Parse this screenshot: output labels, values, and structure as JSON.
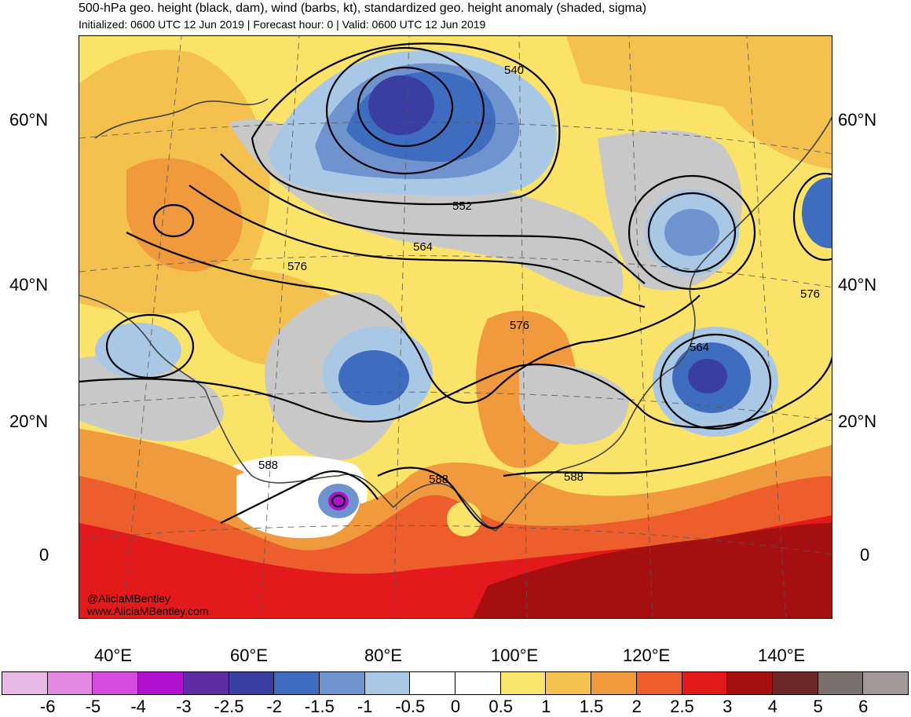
{
  "header": {
    "title": "500-hPa geo. height (black, dam), wind (barbs, kt), standardized geo. height anomaly (shaded, sigma)",
    "subtitle": "Initialized: 0600 UTC 12 Jun 2019 | Forecast hour: 0 | Valid: 0600 UTC 12 Jun 2019"
  },
  "map": {
    "lat_labels": [
      "60°N",
      "40°N",
      "20°N",
      "0"
    ],
    "lon_labels": [
      "40°E",
      "60°E",
      "80°E",
      "100°E",
      "120°E",
      "140°E"
    ],
    "contour_labels": [
      "540",
      "552",
      "564",
      "576",
      "576",
      "576",
      "564",
      "588",
      "588",
      "588"
    ],
    "credit_handle": "@AliciaMBentley",
    "credit_url": "www.AliciaMBentley.com"
  },
  "colorbar": {
    "labels": [
      "-6",
      "-5",
      "-4",
      "-3",
      "-2.5",
      "-2",
      "-1.5",
      "-1",
      "-0.5",
      "0",
      "0.5",
      "1",
      "1.5",
      "2",
      "2.5",
      "3",
      "4",
      "5",
      "6"
    ],
    "colors": [
      "#e9b9e6",
      "#e389e4",
      "#d54bdd",
      "#b112cf",
      "#5e2ca4",
      "#3a3da2",
      "#3e6cbf",
      "#6f93cf",
      "#a9c8e5",
      "#ffffff",
      "#ffffff",
      "#f9e46c",
      "#f4c14f",
      "#f19a3d",
      "#ee5e2d",
      "#e31a1c",
      "#a50f0f",
      "#6c2828",
      "#7a706e",
      "#a39999"
    ]
  }
}
